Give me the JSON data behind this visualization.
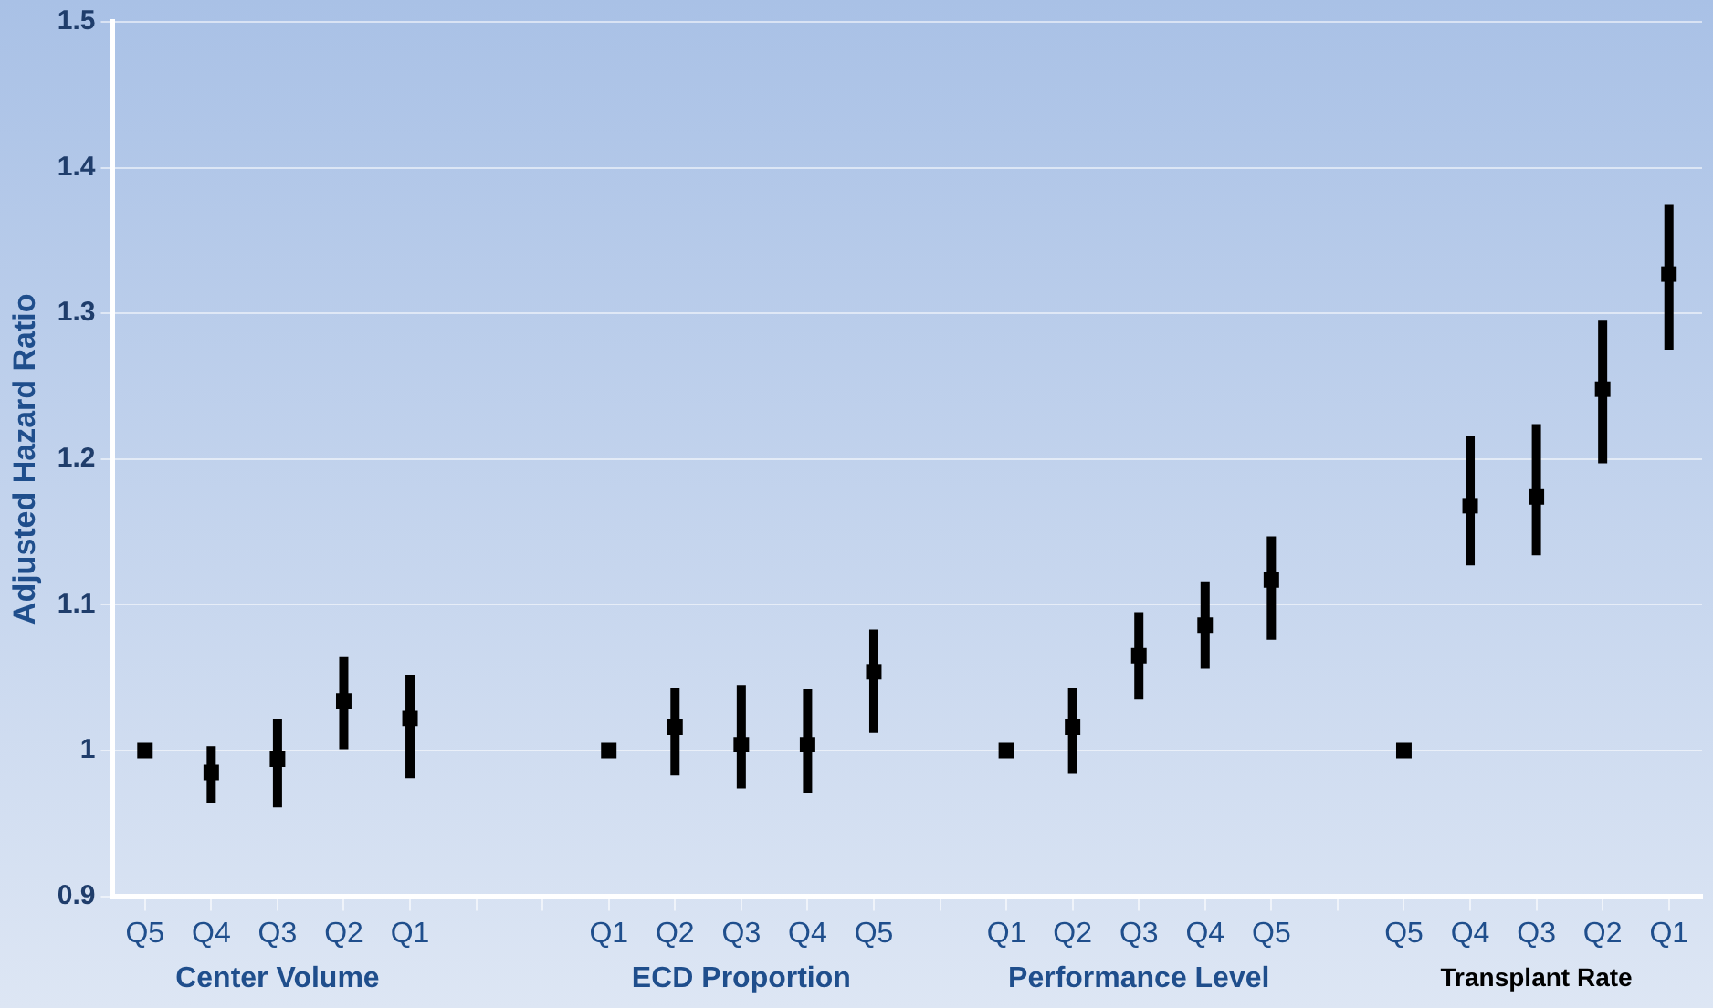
{
  "chart_data": {
    "type": "scatter",
    "ylabel": "Adjusted Hazard Ratio",
    "categories": [
      "Q5",
      "Q4",
      "Q3",
      "Q2",
      "Q1",
      null,
      null,
      "Q1",
      "Q2",
      "Q3",
      "Q4",
      "Q5",
      null,
      "Q1",
      "Q2",
      "Q3",
      "Q4",
      "Q5",
      null,
      "Q5",
      "Q4",
      "Q3",
      "Q2",
      "Q1"
    ],
    "series": [
      {
        "color": "#000000",
        "values": [
          1.0,
          0.985,
          0.994,
          1.034,
          1.022,
          null,
          null,
          1.0,
          1.016,
          1.004,
          1.004,
          1.054,
          null,
          1.0,
          1.016,
          1.065,
          1.086,
          1.117,
          null,
          1.0,
          1.168,
          1.174,
          1.248,
          1.327
        ],
        "errors": [
          null,
          [
            0.964,
            1.003
          ],
          [
            0.961,
            1.022
          ],
          [
            1.001,
            1.064
          ],
          [
            0.981,
            1.052
          ],
          null,
          null,
          null,
          [
            0.983,
            1.043
          ],
          [
            0.974,
            1.045
          ],
          [
            0.971,
            1.042
          ],
          [
            1.012,
            1.083
          ],
          null,
          null,
          [
            0.984,
            1.043
          ],
          [
            1.035,
            1.095
          ],
          [
            1.056,
            1.116
          ],
          [
            1.076,
            1.147
          ],
          null,
          null,
          [
            1.127,
            1.216
          ],
          [
            1.134,
            1.224
          ],
          [
            1.197,
            1.295
          ],
          [
            1.275,
            1.375
          ]
        ]
      }
    ],
    "ylim": [
      0.9,
      1.5
    ],
    "yticks": [
      0.9,
      1,
      1.1,
      1.2,
      1.3,
      1.4,
      1.5
    ],
    "grid": "y",
    "marker": "square",
    "annotations": [
      "Center Volume",
      "ECD Proportion",
      "Performance Level",
      "Transplant Rate"
    ]
  }
}
